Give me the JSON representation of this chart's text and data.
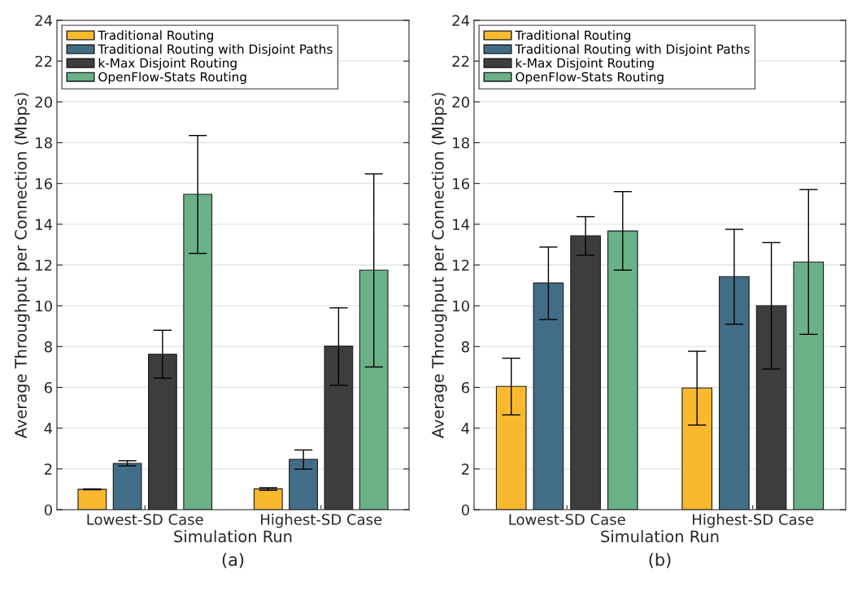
{
  "chart_data": [
    {
      "type": "bar",
      "categories": [
        "Lowest-SD Case",
        "Highest-SD Case"
      ],
      "xlabel": "Simulation Run",
      "ylabel": "Average Throughput per Connection (Mbps)",
      "ylim": [
        0,
        24
      ],
      "yticks": [
        0,
        2,
        4,
        6,
        8,
        10,
        12,
        14,
        16,
        18,
        20,
        22,
        24
      ],
      "grid": "y",
      "legend": "top left",
      "annotations": [
        "(a)"
      ],
      "series": [
        {
          "name": "Traditional Routing",
          "color": "#f8b92e",
          "values": [
            1.0,
            1.02
          ],
          "errors": [
            [
              0.98,
              1.02
            ],
            [
              0.95,
              1.08
            ]
          ]
        },
        {
          "name": "Traditional Routing with Disjoint Paths",
          "color": "#426d87",
          "values": [
            2.27,
            2.47
          ],
          "errors": [
            [
              2.15,
              2.4
            ],
            [
              1.99,
              2.93
            ]
          ]
        },
        {
          "name": "k-Max Disjoint Routing",
          "color": "#3d3d3d",
          "values": [
            7.62,
            8.02
          ],
          "errors": [
            [
              6.45,
              8.8
            ],
            [
              6.1,
              9.9
            ]
          ]
        },
        {
          "name": "OpenFlow-Stats Routing",
          "color": "#6ab187",
          "values": [
            15.47,
            11.75
          ],
          "errors": [
            [
              12.57,
              18.35
            ],
            [
              7.0,
              16.47
            ]
          ]
        }
      ]
    },
    {
      "type": "bar",
      "categories": [
        "Lowest-SD Case",
        "Highest-SD Case"
      ],
      "xlabel": "Simulation Run",
      "ylabel": "Average Throughput per Connection (Mbps)",
      "ylim": [
        0,
        24
      ],
      "yticks": [
        0,
        2,
        4,
        6,
        8,
        10,
        12,
        14,
        16,
        18,
        20,
        22,
        24
      ],
      "grid": "y",
      "legend": "top left",
      "annotations": [
        "(b)"
      ],
      "series": [
        {
          "name": "Traditional Routing",
          "color": "#f8b92e",
          "values": [
            6.05,
            5.97
          ],
          "errors": [
            [
              4.65,
              7.43
            ],
            [
              4.15,
              7.77
            ]
          ]
        },
        {
          "name": "Traditional Routing with Disjoint Paths",
          "color": "#426d87",
          "values": [
            11.12,
            11.43
          ],
          "errors": [
            [
              9.33,
              12.88
            ],
            [
              9.1,
              13.75
            ]
          ]
        },
        {
          "name": "k-Max Disjoint Routing",
          "color": "#3d3d3d",
          "values": [
            13.43,
            10.0
          ],
          "errors": [
            [
              12.48,
              14.37
            ],
            [
              6.9,
              13.1
            ]
          ]
        },
        {
          "name": "OpenFlow-Stats Routing",
          "color": "#6ab187",
          "values": [
            13.67,
            12.15
          ],
          "errors": [
            [
              11.75,
              15.6
            ],
            [
              8.6,
              15.7
            ]
          ]
        }
      ]
    }
  ]
}
